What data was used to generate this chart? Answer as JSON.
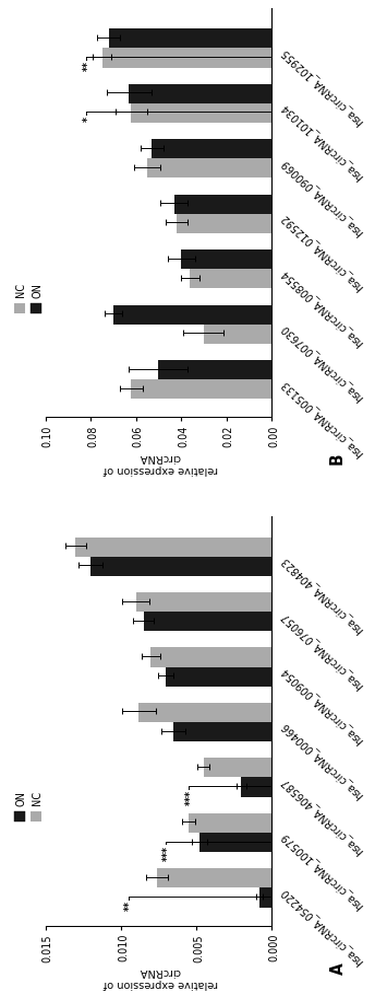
{
  "panel_A": {
    "label": "A",
    "categories": [
      "hsa_circRNA_054220",
      "hsa_circRNA_100579",
      "hsa_circRNA_406587",
      "hsa_circRNA_000466",
      "hsa_circRNA_009054",
      "hsa_circRNA_076057",
      "hsa_circRNA_404823"
    ],
    "ON_values": [
      0.0008,
      0.0048,
      0.002,
      0.0065,
      0.007,
      0.0085,
      0.012
    ],
    "NC_values": [
      0.0076,
      0.0055,
      0.0045,
      0.0088,
      0.008,
      0.009,
      0.013
    ],
    "ON_errors": [
      0.00025,
      0.0005,
      0.0003,
      0.0008,
      0.0005,
      0.0007,
      0.0008
    ],
    "NC_errors": [
      0.0007,
      0.0004,
      0.0004,
      0.0011,
      0.0006,
      0.0009,
      0.0007
    ],
    "ylim": [
      0.0,
      0.015
    ],
    "yticks": [
      0.0,
      0.005,
      0.01,
      0.015
    ],
    "ytick_labels": [
      "0.000",
      "0.005",
      "0.010",
      "0.015"
    ],
    "ylabel": "relative expression of\ncircRNA",
    "sig_items": [
      {
        "cat_idx": 0,
        "text": "**",
        "yval": 0.0095
      },
      {
        "cat_idx": 1,
        "text": "***",
        "yval": 0.007
      },
      {
        "cat_idx": 2,
        "text": "***",
        "yval": 0.0055
      }
    ],
    "legend_order": [
      "ON",
      "NC"
    ]
  },
  "panel_B": {
    "label": "B",
    "categories": [
      "hsa_circRNA_005133",
      "hsa_circRNA_007630",
      "hsa_circRNA_008554",
      "hsa_circRNA_012592",
      "hsa_circRNA_090069",
      "hsa_circRNA_101034",
      "hsa_circRNA_102955"
    ],
    "NC_values": [
      0.062,
      0.03,
      0.036,
      0.042,
      0.055,
      0.062,
      0.075
    ],
    "ON_values": [
      0.05,
      0.07,
      0.04,
      0.043,
      0.053,
      0.063,
      0.072
    ],
    "NC_errors": [
      0.005,
      0.009,
      0.004,
      0.005,
      0.006,
      0.007,
      0.004
    ],
    "ON_errors": [
      0.013,
      0.004,
      0.006,
      0.006,
      0.005,
      0.01,
      0.005
    ],
    "ylim": [
      0.0,
      0.1
    ],
    "yticks": [
      0.0,
      0.02,
      0.04,
      0.06,
      0.08,
      0.1
    ],
    "ytick_labels": [
      "0.00",
      "0.02",
      "0.04",
      "0.06",
      "0.08",
      "0.10"
    ],
    "ylabel": "relative expression of\ncircRNA",
    "sig_items": [
      {
        "cat_idx": 5,
        "text": "*",
        "yval": 0.082
      },
      {
        "cat_idx": 6,
        "text": "**",
        "yval": 0.082
      }
    ],
    "legend_order": [
      "NC",
      "ON"
    ]
  },
  "bar_width": 0.35,
  "ON_color": "#1a1a1a",
  "NC_color": "#aaaaaa",
  "background_color": "#ffffff",
  "fontsize": 7,
  "tick_fontsize": 7,
  "cat_fontsize": 7
}
